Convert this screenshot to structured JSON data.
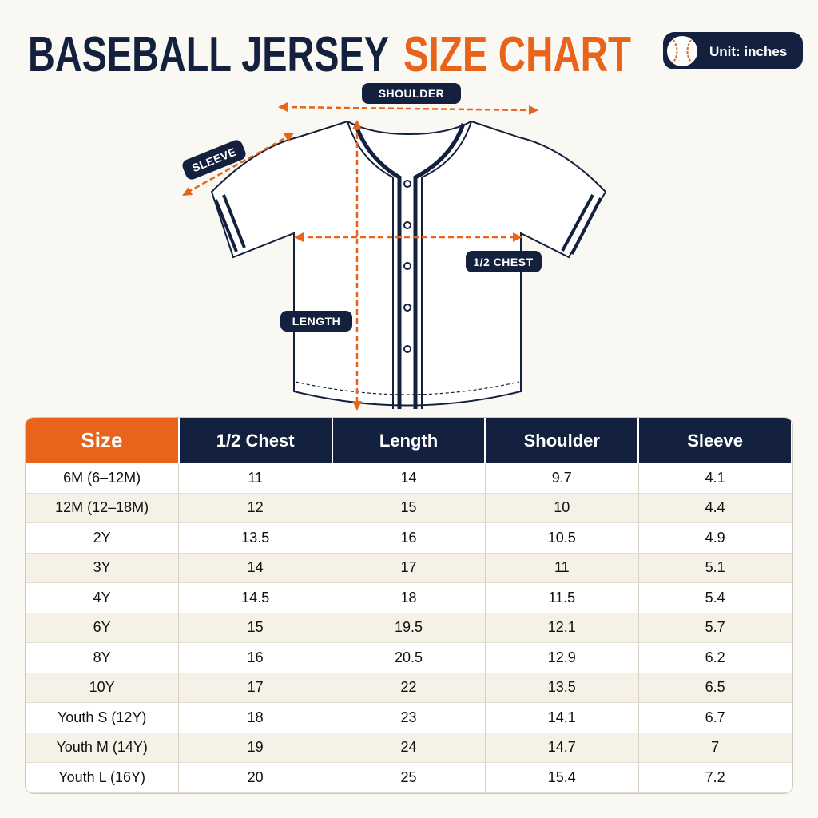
{
  "header": {
    "title_main": "BASEBALL JERSEY",
    "title_accent": "SIZE CHART",
    "unit": "Unit: inches"
  },
  "diagram": {
    "shoulder": "SHOULDER",
    "sleeve": "SLEEVE",
    "half_chest": "1/2 CHEST",
    "length": "LENGTH"
  },
  "table": {
    "columns": [
      "Size",
      "1/2 Chest",
      "Length",
      "Shoulder",
      "Sleeve"
    ],
    "rows": [
      [
        "6M (6–12M)",
        "11",
        "14",
        "9.7",
        "4.1"
      ],
      [
        "12M (12–18M)",
        "12",
        "15",
        "10",
        "4.4"
      ],
      [
        "2Y",
        "13.5",
        "16",
        "10.5",
        "4.9"
      ],
      [
        "3Y",
        "14",
        "17",
        "11",
        "5.1"
      ],
      [
        "4Y",
        "14.5",
        "18",
        "11.5",
        "5.4"
      ],
      [
        "6Y",
        "15",
        "19.5",
        "12.1",
        "5.7"
      ],
      [
        "8Y",
        "16",
        "20.5",
        "12.9",
        "6.2"
      ],
      [
        "10Y",
        "17",
        "22",
        "13.5",
        "6.5"
      ],
      [
        "Youth S (12Y)",
        "18",
        "23",
        "14.1",
        "6.7"
      ],
      [
        "Youth M (14Y)",
        "19",
        "24",
        "14.7",
        "7"
      ],
      [
        "Youth L (16Y)",
        "20",
        "25",
        "15.4",
        "7.2"
      ]
    ]
  }
}
